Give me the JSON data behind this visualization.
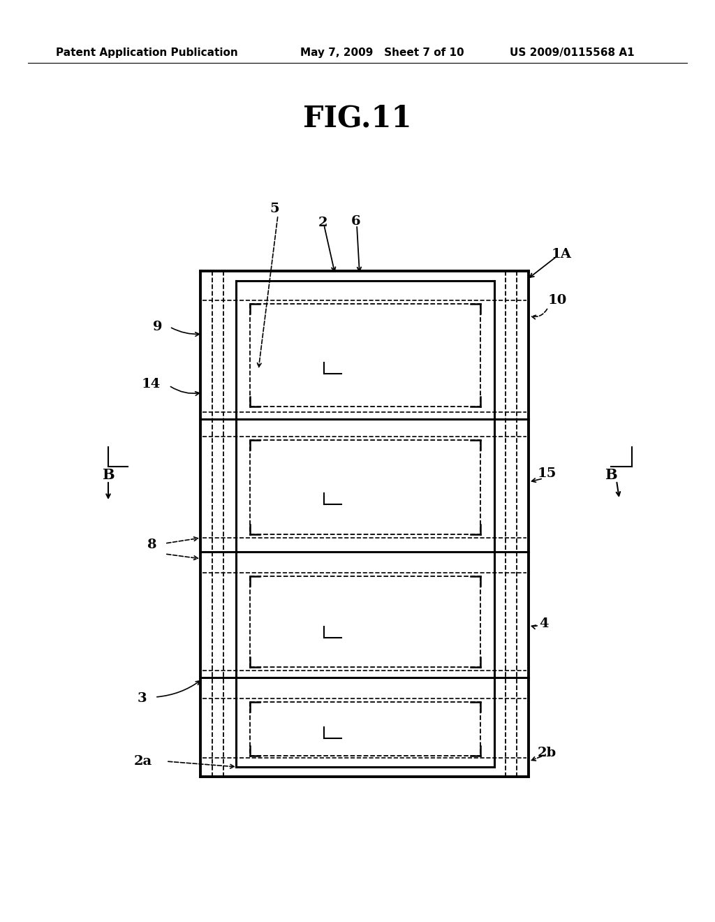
{
  "background_color": "#ffffff",
  "header_left": "Patent Application Publication",
  "header_mid": "May 7, 2009   Sheet 7 of 10",
  "header_right": "US 2009/0115568 A1",
  "figure_title": "FIG.11",
  "page_width": 10.24,
  "page_height": 13.2
}
